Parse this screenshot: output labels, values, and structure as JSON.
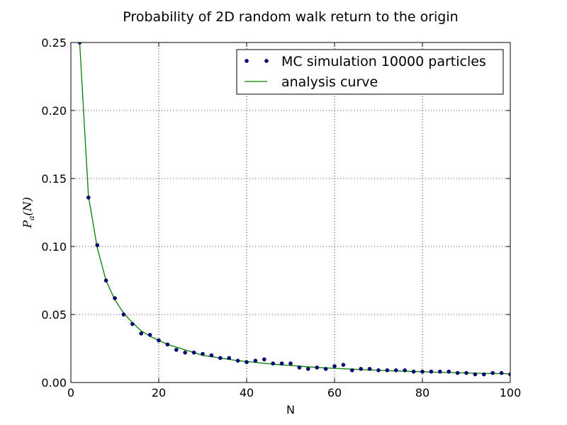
{
  "chart_data": {
    "type": "scatter",
    "title": "Probability of 2D random walk return to the origin",
    "xlabel": "N",
    "ylabel": "P_a(N)",
    "ylabel_parts": {
      "main": "P",
      "sub": "a",
      "rest": "(N)"
    },
    "xlim": [
      0,
      100
    ],
    "ylim": [
      0,
      0.25
    ],
    "xticks": [
      0,
      20,
      40,
      60,
      80,
      100
    ],
    "xtick_labels": [
      "0",
      "20",
      "40",
      "60",
      "80",
      "100"
    ],
    "yticks": [
      0.0,
      0.05,
      0.1,
      0.15,
      0.2,
      0.25
    ],
    "ytick_labels": [
      "0.00",
      "0.05",
      "0.10",
      "0.15",
      "0.20",
      "0.25"
    ],
    "grid": true,
    "legend_position": "top-right",
    "series": [
      {
        "name": "MC simulation 10000 particles",
        "kind": "points",
        "color": "#00008b",
        "x": [
          2,
          4,
          6,
          8,
          10,
          12,
          14,
          16,
          18,
          20,
          22,
          24,
          26,
          28,
          30,
          32,
          34,
          36,
          38,
          40,
          42,
          44,
          46,
          48,
          50,
          52,
          54,
          56,
          58,
          60,
          62,
          64,
          66,
          68,
          70,
          72,
          74,
          76,
          78,
          80,
          82,
          84,
          86,
          88,
          90,
          92,
          94,
          96,
          98,
          100
        ],
        "y": [
          0.25,
          0.136,
          0.101,
          0.075,
          0.062,
          0.05,
          0.043,
          0.036,
          0.035,
          0.031,
          0.028,
          0.024,
          0.022,
          0.022,
          0.021,
          0.02,
          0.018,
          0.018,
          0.016,
          0.015,
          0.016,
          0.017,
          0.014,
          0.014,
          0.014,
          0.011,
          0.01,
          0.011,
          0.01,
          0.012,
          0.013,
          0.009,
          0.01,
          0.01,
          0.009,
          0.009,
          0.009,
          0.009,
          0.008,
          0.008,
          0.008,
          0.008,
          0.008,
          0.007,
          0.007,
          0.006,
          0.006,
          0.007,
          0.007,
          0.006
        ]
      },
      {
        "name": "analysis curve",
        "kind": "line",
        "color": "#008000",
        "x": [
          2,
          4,
          6,
          8,
          10,
          12,
          14,
          16,
          18,
          20,
          22,
          24,
          26,
          28,
          30,
          32,
          34,
          36,
          38,
          40,
          42,
          44,
          46,
          48,
          50,
          52,
          54,
          56,
          58,
          60,
          62,
          64,
          66,
          68,
          70,
          72,
          74,
          76,
          78,
          80,
          82,
          84,
          86,
          88,
          90,
          92,
          94,
          96,
          98,
          100
        ],
        "y": [
          0.25,
          0.137,
          0.099,
          0.075,
          0.061,
          0.051,
          0.044,
          0.038,
          0.034,
          0.031,
          0.028,
          0.026,
          0.024,
          0.022,
          0.02,
          0.019,
          0.018,
          0.017,
          0.016,
          0.0155,
          0.0148,
          0.0141,
          0.0135,
          0.013,
          0.0125,
          0.012,
          0.0115,
          0.0111,
          0.0107,
          0.0104,
          0.0101,
          0.0098,
          0.0095,
          0.0092,
          0.009,
          0.0087,
          0.0085,
          0.0083,
          0.0081,
          0.0079,
          0.0077,
          0.0075,
          0.0073,
          0.0072,
          0.007,
          0.0069,
          0.0067,
          0.0066,
          0.0065,
          0.0063
        ]
      }
    ]
  }
}
